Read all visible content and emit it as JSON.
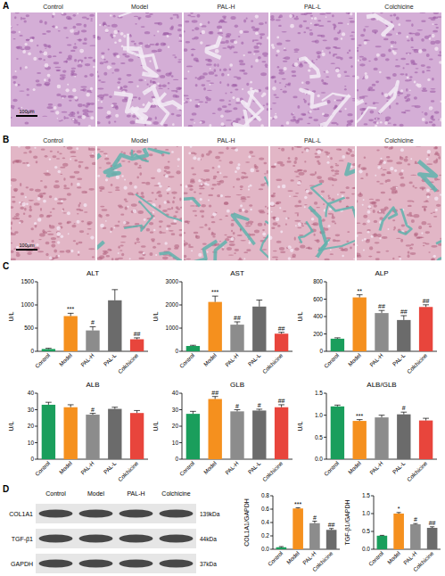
{
  "figure": {
    "panels": [
      "A",
      "B",
      "C",
      "D"
    ],
    "histology": {
      "labels": [
        "Control",
        "Model",
        "PAL-H",
        "PAL-L",
        "Colchicine"
      ],
      "scale_bar": "100μm"
    },
    "blot": {
      "lanes": [
        "Control",
        "Model",
        "PAL-H",
        "Colchicine"
      ],
      "proteins": [
        "COL1A1",
        "TGF-β1",
        "GAPDH"
      ],
      "sizes": [
        "139kDa",
        "44kDa",
        "37kDa"
      ]
    }
  },
  "chart_data": [
    {
      "type": "bar",
      "title": "ALT",
      "y_label": "U/L",
      "categories": [
        "Control",
        "Model",
        "PAL-H",
        "PAL-L",
        "Colchicine"
      ],
      "values": [
        50,
        760,
        450,
        1100,
        260
      ],
      "errors": [
        15,
        60,
        80,
        230,
        30
      ],
      "annotations": [
        null,
        "***",
        "#",
        null,
        "##"
      ],
      "colors": [
        "#1a9e5c",
        "#f5901e",
        "#8c8c8c",
        "#6b6b6b",
        "#e8453c"
      ],
      "ylim": [
        0,
        1500
      ],
      "yticks": [
        0,
        500,
        1000,
        1500
      ]
    },
    {
      "type": "bar",
      "title": "AST",
      "y_label": "U/L",
      "categories": [
        "Control",
        "Model",
        "PAL-H",
        "PAL-L",
        "Colchicine"
      ],
      "values": [
        230,
        2130,
        1150,
        1930,
        760
      ],
      "errors": [
        30,
        250,
        120,
        280,
        60
      ],
      "annotations": [
        null,
        "***",
        "##",
        null,
        "##"
      ],
      "colors": [
        "#1a9e5c",
        "#f5901e",
        "#8c8c8c",
        "#6b6b6b",
        "#e8453c"
      ],
      "ylim": [
        0,
        3000
      ],
      "yticks": [
        0,
        1000,
        2000,
        3000
      ]
    },
    {
      "type": "bar",
      "title": "ALP",
      "y_label": "U/L",
      "categories": [
        "Control",
        "Model",
        "PAL-H",
        "PAL-L",
        "Colchicine"
      ],
      "values": [
        145,
        620,
        440,
        360,
        510
      ],
      "errors": [
        10,
        30,
        30,
        50,
        25
      ],
      "annotations": [
        null,
        "**",
        "##",
        "##",
        "##"
      ],
      "colors": [
        "#1a9e5c",
        "#f5901e",
        "#8c8c8c",
        "#6b6b6b",
        "#e8453c"
      ],
      "ylim": [
        0,
        800
      ],
      "yticks": [
        0,
        200,
        400,
        600,
        800
      ]
    },
    {
      "type": "bar",
      "title": "ALB",
      "y_label": "U/L",
      "categories": [
        "Control",
        "Model",
        "PAL-H",
        "PAL-L",
        "Colchicine"
      ],
      "values": [
        33,
        31.5,
        27,
        30.5,
        28
      ],
      "errors": [
        1.5,
        1.5,
        0.8,
        1,
        1.5
      ],
      "annotations": [
        null,
        null,
        "#",
        null,
        null
      ],
      "colors": [
        "#1a9e5c",
        "#f5901e",
        "#8c8c8c",
        "#6b6b6b",
        "#e8453c"
      ],
      "ylim": [
        0,
        40
      ],
      "yticks": [
        0,
        10,
        20,
        30,
        40
      ]
    },
    {
      "type": "bar",
      "title": "GLB",
      "y_label": "U/L",
      "categories": [
        "Control",
        "Model",
        "PAL-H",
        "PAL-L",
        "Colchicine"
      ],
      "values": [
        27.5,
        36.5,
        29,
        29.5,
        31.5
      ],
      "errors": [
        1.5,
        1.5,
        1,
        0.8,
        1.5
      ],
      "annotations": [
        null,
        "##",
        "#",
        "#",
        "##"
      ],
      "colors": [
        "#1a9e5c",
        "#f5901e",
        "#8c8c8c",
        "#6b6b6b",
        "#e8453c"
      ],
      "ylim": [
        0,
        40
      ],
      "yticks": [
        0,
        10,
        20,
        30,
        40
      ]
    },
    {
      "type": "bar",
      "title": "ALB/GLB",
      "y_label": "U/L",
      "categories": [
        "Control",
        "Model",
        "PAL-H",
        "PAL-L",
        "Colchicine"
      ],
      "values": [
        1.2,
        0.87,
        0.95,
        1.02,
        0.88
      ],
      "errors": [
        0.03,
        0.03,
        0.05,
        0.05,
        0.05
      ],
      "annotations": [
        null,
        "***",
        null,
        "#",
        null
      ],
      "colors": [
        "#1a9e5c",
        "#f5901e",
        "#8c8c8c",
        "#6b6b6b",
        "#e8453c"
      ],
      "ylim": [
        0,
        1.5
      ],
      "yticks": [
        {
          "value": 0,
          "label": "0.0"
        },
        0.5,
        {
          "value": 1,
          "label": "1.0"
        },
        1.5
      ]
    },
    {
      "type": "bar",
      "y_label": "COL1A1/GAPDH",
      "categories": [
        "Control",
        "Model",
        "PAL-H",
        "Colchicine"
      ],
      "values": [
        0.03,
        0.61,
        0.39,
        0.29
      ],
      "errors": [
        0.01,
        0.01,
        0.03,
        0.02
      ],
      "annotations": [
        null,
        "***",
        "#",
        "##"
      ],
      "colors": [
        "#1a9e5c",
        "#f5901e",
        "#8c8c8c",
        "#6b6b6b"
      ],
      "ylim": [
        0,
        0.8
      ],
      "yticks": [
        {
          "value": 0,
          "label": "0.0"
        },
        0.2,
        0.4,
        0.6,
        0.8
      ]
    },
    {
      "type": "bar",
      "y_label": "TGF-β1/GAPDH",
      "categories": [
        "Control",
        "Model",
        "PAL-H",
        "Colchicine"
      ],
      "values": [
        0.38,
        1.0,
        0.7,
        0.6
      ],
      "errors": [
        0.01,
        0.03,
        0.02,
        0.03
      ],
      "annotations": [
        null,
        "*",
        "#",
        "##"
      ],
      "colors": [
        "#1a9e5c",
        "#f5901e",
        "#8c8c8c",
        "#6b6b6b"
      ],
      "ylim": [
        0,
        1.5
      ],
      "yticks": [
        {
          "value": 0,
          "label": "0.0"
        },
        0.5,
        {
          "value": 1,
          "label": "1.0"
        },
        1.5
      ]
    }
  ]
}
